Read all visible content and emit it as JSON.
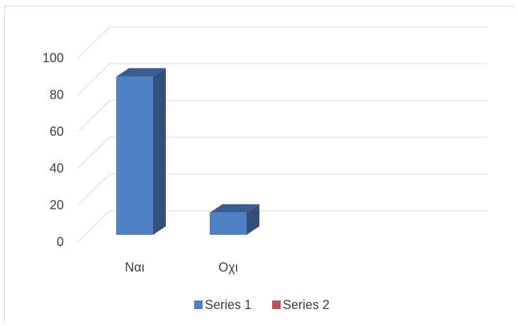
{
  "chart_data": {
    "type": "bar",
    "title": "",
    "xlabel": "",
    "ylabel": "",
    "categories": [
      "Ναι",
      "Οχι"
    ],
    "series": [
      {
        "name": "Series 1",
        "values": [
          86,
          12
        ],
        "color": "#4f81c5"
      },
      {
        "name": "Series 2",
        "values": [
          null,
          null
        ],
        "color": "#c0504d"
      }
    ],
    "y_ticks": [
      "0",
      "20",
      "40",
      "60",
      "80",
      "100"
    ],
    "ylim": [
      0,
      100
    ],
    "grid": true,
    "legend_position": "bottom",
    "style": "3d-column"
  }
}
